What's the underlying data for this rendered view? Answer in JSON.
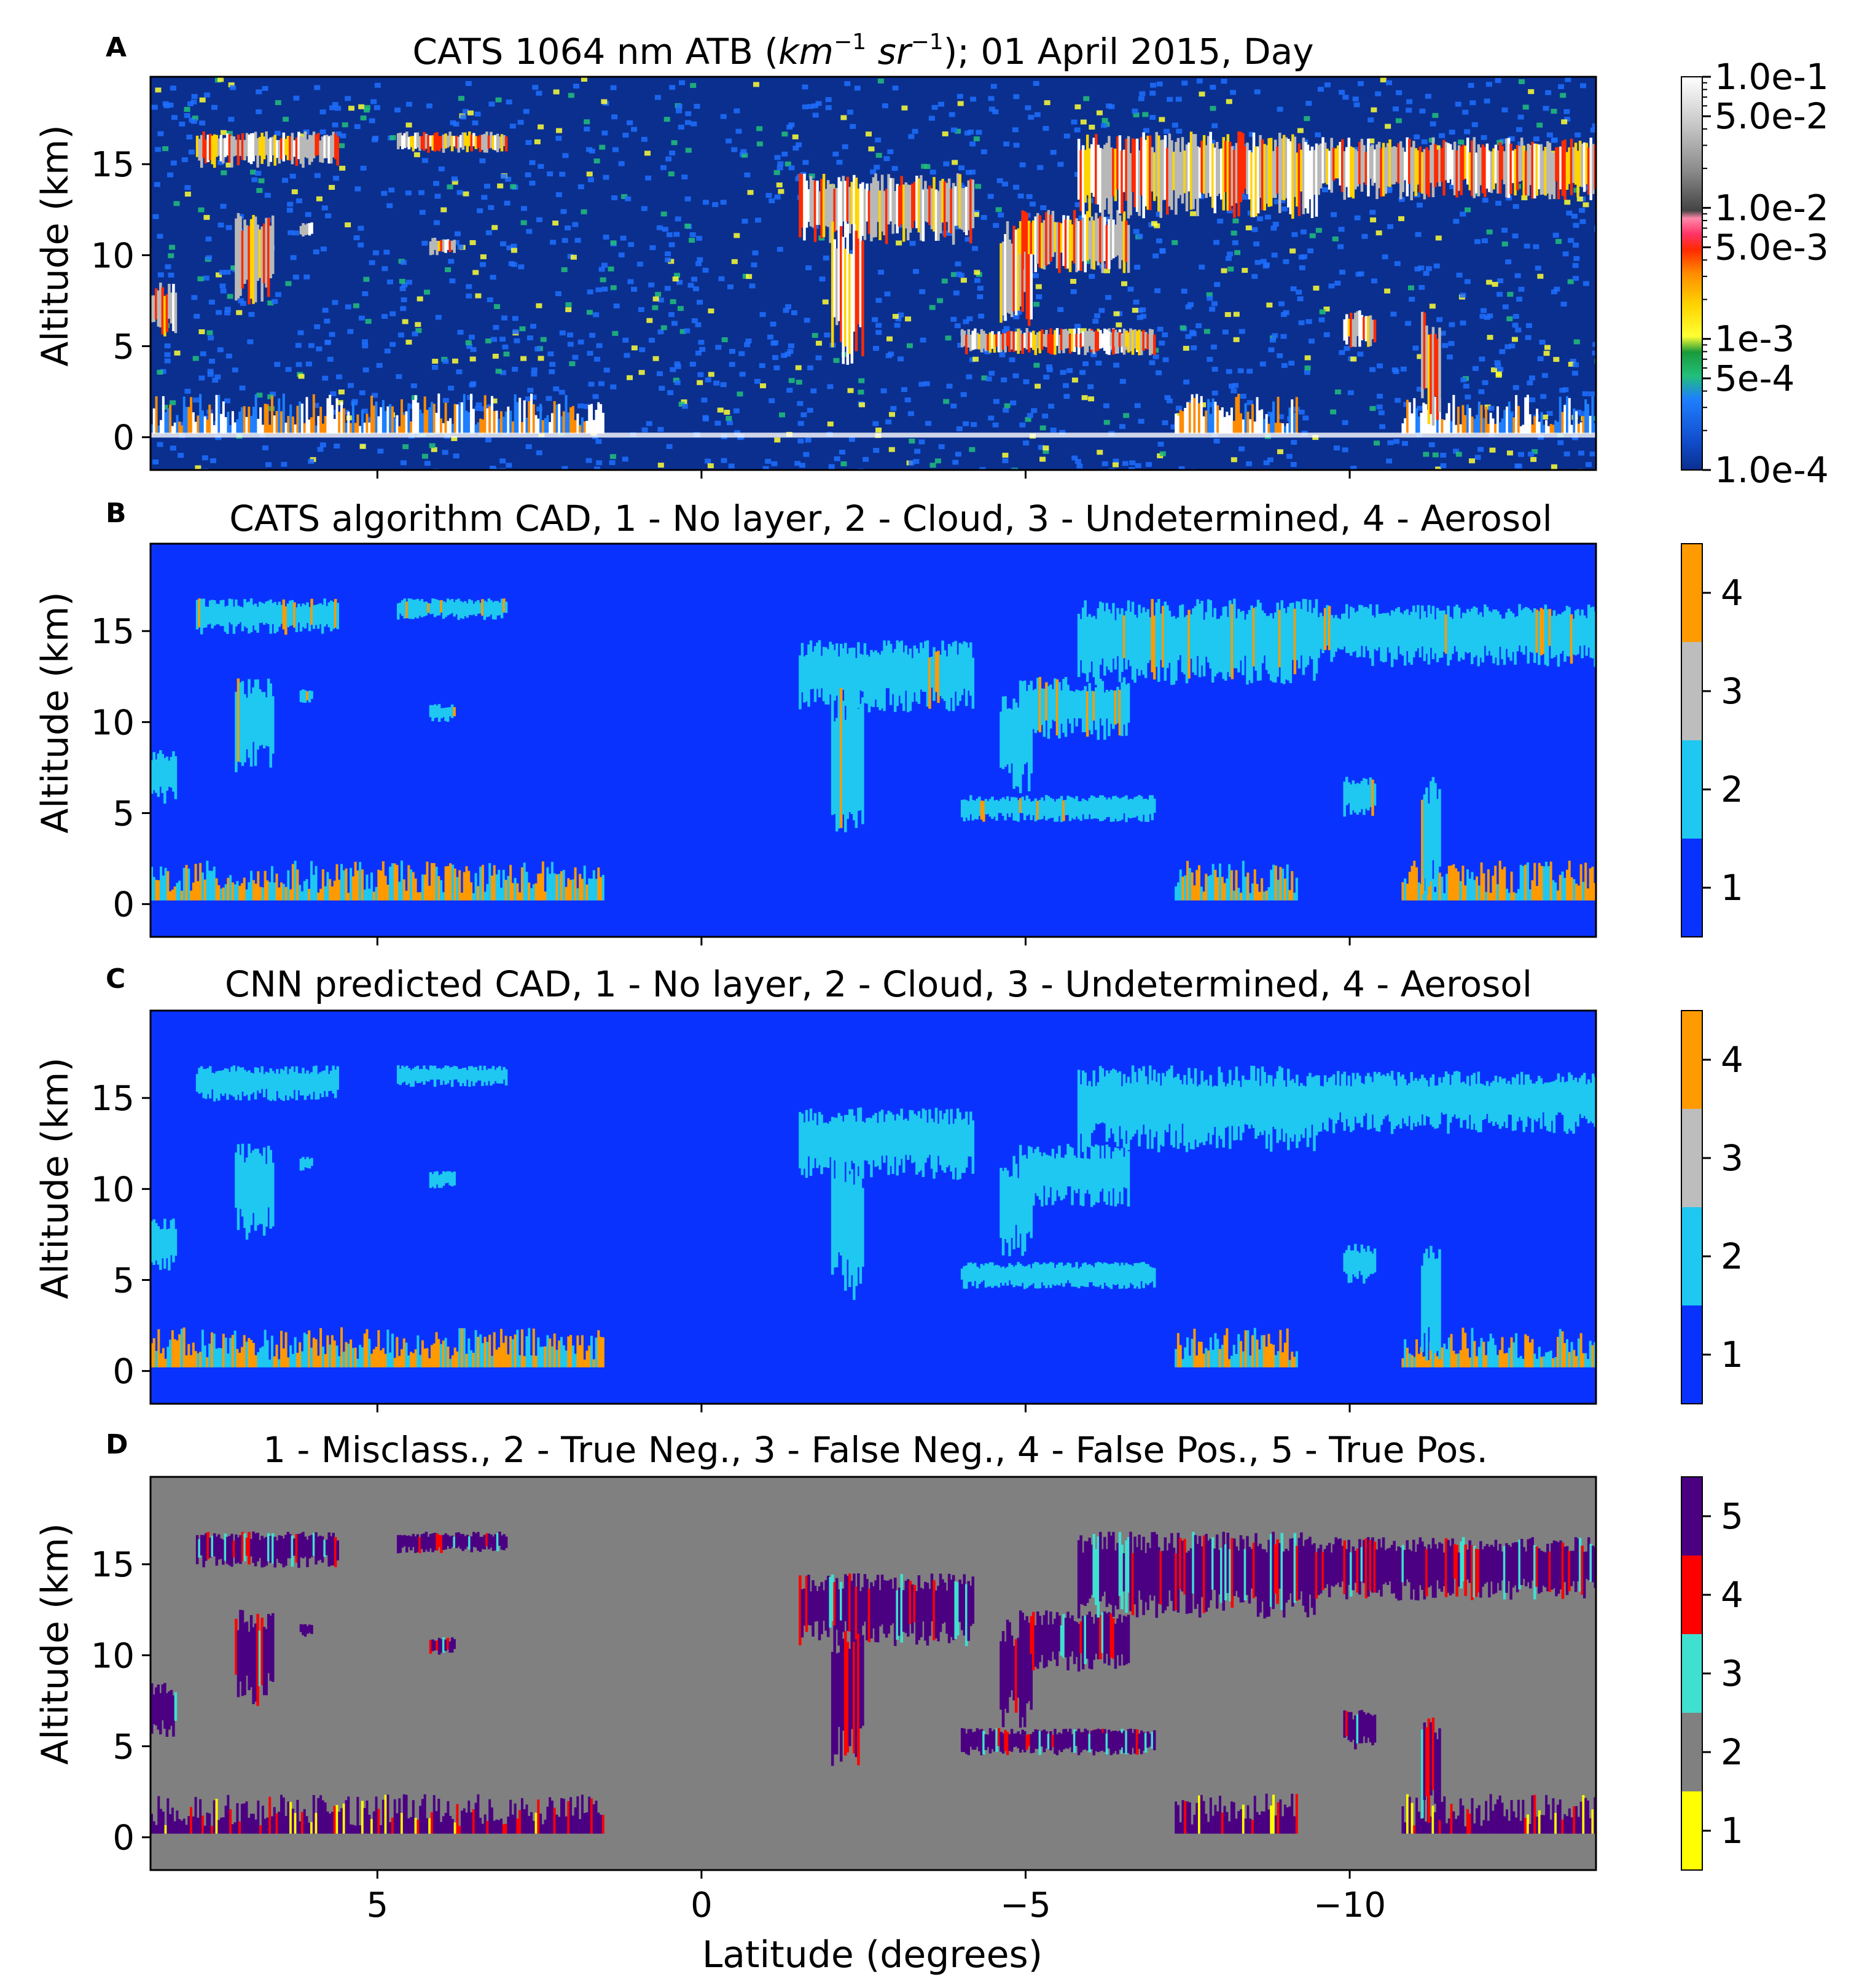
{
  "figure": {
    "xlabel": "Latitude (degrees)",
    "ylabel": "Altitude (km)"
  },
  "chart_data": [
    {
      "type": "heatmap",
      "panel": "A",
      "title_prefix": "CATS 1064 nm ATB (",
      "title_math": "km",
      "title_sup1": "−1",
      "title_math2": " sr",
      "title_sup2": "−1",
      "title_suffix": "); 01 April 2015, Day",
      "ylabel": "Altitude (km)",
      "xlim": [
        8.5,
        -13.8
      ],
      "ylim": [
        -1.8,
        19.8
      ],
      "yticks": [
        "0",
        "5",
        "10",
        "15"
      ],
      "ytick_values": [
        0,
        5,
        10,
        15
      ],
      "colorbar": {
        "scale": "log",
        "range": [
          0.0001,
          0.1
        ],
        "ticks": [
          "1.0e-1",
          "5.0e-2",
          "1.0e-2",
          "5.0e-3",
          "1e-3",
          "5e-4",
          "1.0e-4"
        ],
        "tick_values": [
          0.1,
          0.05,
          0.01,
          0.005,
          0.001,
          0.0005,
          0.0001
        ],
        "colors": [
          "#0a2f8f",
          "#1e6fff",
          "#22c07a",
          "#1a9a3a",
          "#ffff33",
          "#ffd400",
          "#ff8c00",
          "#ff2a00",
          "#ff3366",
          "#ff88aa",
          "#8a8a8a",
          "#b8b8b8",
          "#e0e0e0",
          "#ffffff"
        ]
      },
      "background_color": "#0a2f8f"
    },
    {
      "type": "heatmap",
      "panel": "B",
      "title": "CATS algorithm CAD, 1 - No layer, 2 - Cloud, 3 - Undetermined, 4 - Aerosol",
      "ylabel": "Altitude (km)",
      "xlim": [
        8.5,
        -13.8
      ],
      "ylim": [
        -1.8,
        19.8
      ],
      "yticks": [
        "0",
        "5",
        "10",
        "15"
      ],
      "ytick_values": [
        0,
        5,
        10,
        15
      ],
      "colorbar": {
        "scale": "categorical",
        "ticks": [
          "1",
          "2",
          "3",
          "4"
        ],
        "colors": [
          "#0a32ff",
          "#1ec8f0",
          "#bdbdbd",
          "#ff9a00"
        ]
      },
      "background_color": "#0a32ff",
      "layer_color": "#1ec8f0",
      "aerosol_color": "#ff9a00"
    },
    {
      "type": "heatmap",
      "panel": "C",
      "title": "CNN predicted CAD, 1 - No layer, 2 - Cloud, 3 - Undetermined, 4 - Aerosol",
      "ylabel": "Altitude (km)",
      "xlim": [
        8.5,
        -13.8
      ],
      "ylim": [
        -1.8,
        19.8
      ],
      "yticks": [
        "0",
        "5",
        "10",
        "15"
      ],
      "ytick_values": [
        0,
        5,
        10,
        15
      ],
      "colorbar": {
        "scale": "categorical",
        "ticks": [
          "1",
          "2",
          "3",
          "4"
        ],
        "colors": [
          "#0a32ff",
          "#1ec8f0",
          "#bdbdbd",
          "#ff9a00"
        ]
      },
      "background_color": "#0a32ff",
      "layer_color": "#1ec8f0",
      "aerosol_color": "#ff9a00"
    },
    {
      "type": "heatmap",
      "panel": "D",
      "title": "1 - Misclass., 2 - True Neg., 3 - False Neg., 4 - False Pos., 5 - True Pos.",
      "ylabel": "Altitude (km)",
      "xlabel": "Latitude (degrees)",
      "xlim": [
        8.5,
        -13.8
      ],
      "ylim": [
        -1.8,
        19.8
      ],
      "xticks": [
        "5",
        "0",
        "−5",
        "−10"
      ],
      "xtick_values": [
        5,
        0,
        -5,
        -10
      ],
      "yticks": [
        "0",
        "5",
        "10",
        "15"
      ],
      "ytick_values": [
        0,
        5,
        10,
        15
      ],
      "colorbar": {
        "scale": "categorical",
        "ticks": [
          "1",
          "2",
          "3",
          "4",
          "5"
        ],
        "colors": [
          "#ffff00",
          "#808080",
          "#40e0d0",
          "#ff0000",
          "#4b0082"
        ]
      },
      "background_color": "#808080",
      "layer_color": "#4b0082",
      "aerosol_color": "#4b0082"
    }
  ]
}
